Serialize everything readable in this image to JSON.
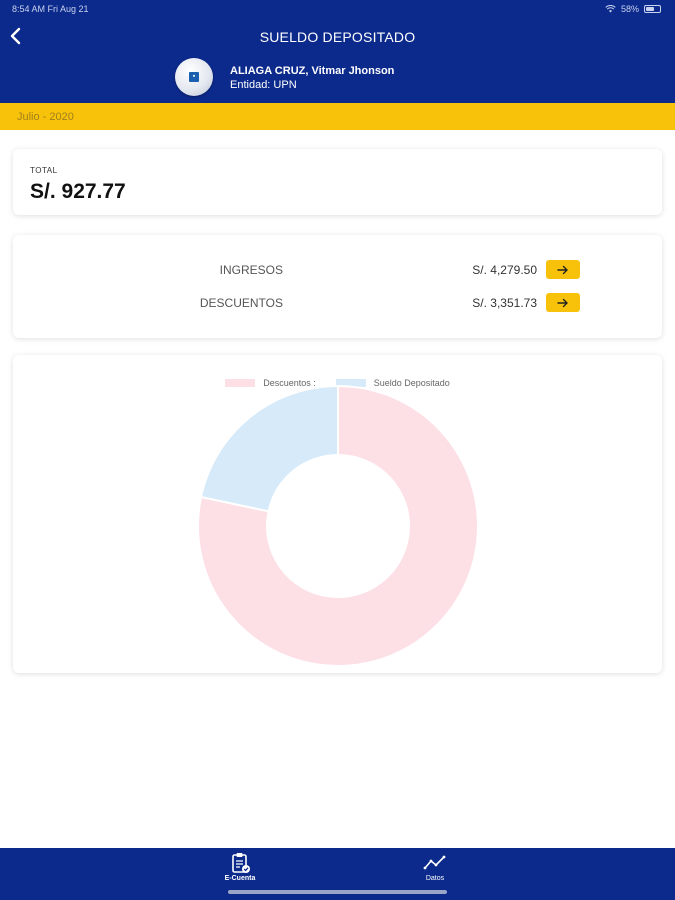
{
  "status_bar": {
    "time_date": "8:54 AM   Fri Aug 21",
    "battery": "58%"
  },
  "header": {
    "title": "SUELDO DEPOSITADO",
    "back_icon": "chevron-left-icon"
  },
  "user": {
    "name": "ALIAGA CRUZ, Vitmar Jhonson",
    "entity": "Entidad: UPN"
  },
  "period": {
    "label": "Julio - 2020"
  },
  "total": {
    "label": "TOTAL",
    "value": "S/. 927.77"
  },
  "breakdown": {
    "rows": [
      {
        "label": "INGRESOS",
        "amount": "S/. 4,279.50"
      },
      {
        "label": "DESCUENTOS",
        "amount": "S/. 3,351.73"
      }
    ]
  },
  "colors": {
    "header_blue": "#0c2a8c",
    "accent_yellow": "#f8c20a",
    "descuentos_pink": "#fde0e6",
    "sueldo_blue": "#d6eaf9"
  },
  "chart_data": {
    "type": "pie",
    "donut": true,
    "legend_position": "top",
    "series": [
      {
        "name": "Descuentos :",
        "value": 3351.73,
        "color": "#fde0e6"
      },
      {
        "name": "Sueldo Depositado",
        "value": 927.77,
        "color": "#d6eaf9"
      }
    ]
  },
  "bottom_nav": {
    "items": [
      {
        "label": "E-Cuenta",
        "icon": "clipboard-check-icon",
        "active": true
      },
      {
        "label": "Datos",
        "icon": "line-chart-icon",
        "active": false
      }
    ]
  }
}
